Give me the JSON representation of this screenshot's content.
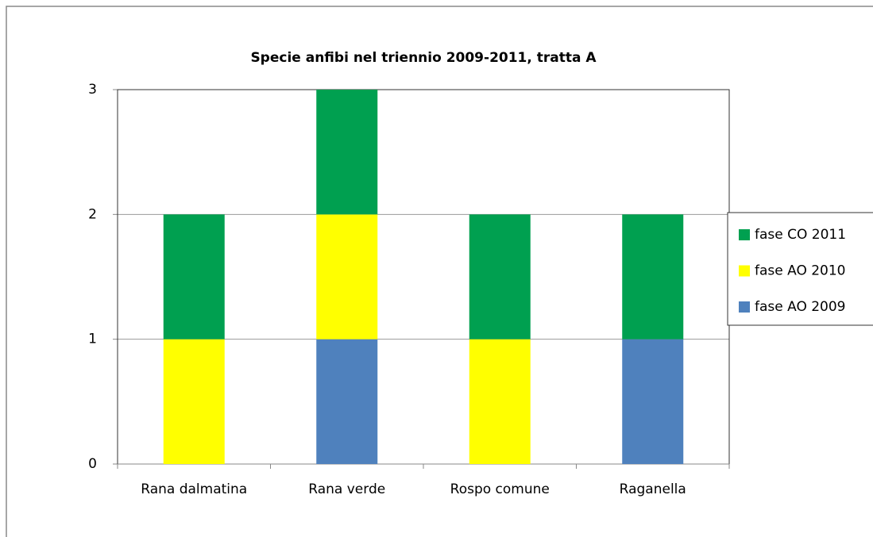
{
  "chart_data": {
    "type": "bar",
    "stacked": true,
    "title": "Specie anfibi nel triennio 2009-2011, tratta A",
    "categories": [
      "Rana dalmatina",
      "Rana verde",
      "Rospo comune",
      "Raganella"
    ],
    "series": [
      {
        "name": "fase AO 2009",
        "color": "#4f81bd",
        "values": [
          0,
          1,
          0,
          1
        ]
      },
      {
        "name": "fase AO 2010",
        "color": "#ffff00",
        "values": [
          1,
          1,
          1,
          0
        ]
      },
      {
        "name": "fase CO 2011",
        "color": "#00a050",
        "values": [
          1,
          1,
          1,
          1
        ]
      }
    ],
    "ylim": [
      0,
      3
    ],
    "yticks": [
      0,
      1,
      2,
      3
    ],
    "grid": true,
    "legend": "right"
  }
}
